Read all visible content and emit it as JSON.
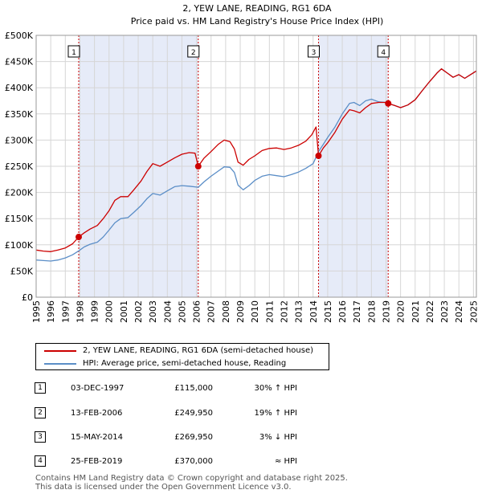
{
  "chart_data": {
    "type": "line",
    "title": "2, YEW LANE, READING, RG1 6DA",
    "subtitle": "Price paid vs. HM Land Registry's House Price Index (HPI)",
    "xlabel": "",
    "ylabel": "",
    "xlim": [
      1995,
      2025.2
    ],
    "ylim": [
      0,
      500000
    ],
    "x_ticks": [
      "1995",
      "1996",
      "1997",
      "1998",
      "1999",
      "2000",
      "2001",
      "2002",
      "2003",
      "2004",
      "2005",
      "2006",
      "2007",
      "2008",
      "2009",
      "2010",
      "2011",
      "2012",
      "2013",
      "2014",
      "2015",
      "2016",
      "2017",
      "2018",
      "2019",
      "2020",
      "2021",
      "2022",
      "2023",
      "2024",
      "2025"
    ],
    "y_ticks": [
      {
        "value": 0,
        "label": "£0"
      },
      {
        "value": 50000,
        "label": "£50K"
      },
      {
        "value": 100000,
        "label": "£100K"
      },
      {
        "value": 150000,
        "label": "£150K"
      },
      {
        "value": 200000,
        "label": "£200K"
      },
      {
        "value": 250000,
        "label": "£250K"
      },
      {
        "value": 300000,
        "label": "£300K"
      },
      {
        "value": 350000,
        "label": "£350K"
      },
      {
        "value": 400000,
        "label": "£400K"
      },
      {
        "value": 450000,
        "label": "£450K"
      },
      {
        "value": 500000,
        "label": "£500K"
      }
    ],
    "grid": true,
    "shaded_ranges": [
      [
        1997.92,
        2006.12
      ],
      [
        2014.37,
        2019.15
      ]
    ],
    "series": [
      {
        "name": "2, YEW LANE, READING, RG1 6DA (semi-detached house)",
        "color": "#cc0000",
        "points": [
          [
            1995.0,
            90000
          ],
          [
            1995.5,
            88000
          ],
          [
            1996.0,
            87000
          ],
          [
            1996.5,
            90000
          ],
          [
            1997.0,
            94000
          ],
          [
            1997.5,
            102000
          ],
          [
            1997.92,
            115000
          ],
          [
            1998.3,
            123000
          ],
          [
            1998.7,
            130000
          ],
          [
            1999.2,
            137000
          ],
          [
            1999.6,
            150000
          ],
          [
            2000.0,
            165000
          ],
          [
            2000.4,
            185000
          ],
          [
            2000.8,
            192000
          ],
          [
            2001.3,
            192000
          ],
          [
            2001.7,
            205000
          ],
          [
            2002.2,
            222000
          ],
          [
            2002.6,
            240000
          ],
          [
            2003.0,
            255000
          ],
          [
            2003.5,
            250000
          ],
          [
            2004.0,
            258000
          ],
          [
            2004.5,
            266000
          ],
          [
            2005.0,
            273000
          ],
          [
            2005.5,
            276000
          ],
          [
            2005.9,
            275000
          ],
          [
            2006.12,
            249950
          ],
          [
            2006.5,
            265000
          ],
          [
            2007.0,
            278000
          ],
          [
            2007.5,
            292000
          ],
          [
            2007.9,
            300000
          ],
          [
            2008.3,
            297000
          ],
          [
            2008.6,
            283000
          ],
          [
            2008.85,
            258000
          ],
          [
            2009.2,
            252000
          ],
          [
            2009.6,
            263000
          ],
          [
            2010.0,
            270000
          ],
          [
            2010.5,
            280000
          ],
          [
            2011.0,
            284000
          ],
          [
            2011.5,
            285000
          ],
          [
            2012.0,
            282000
          ],
          [
            2012.5,
            285000
          ],
          [
            2013.0,
            290000
          ],
          [
            2013.5,
            298000
          ],
          [
            2013.9,
            310000
          ],
          [
            2014.2,
            325000
          ],
          [
            2014.37,
            269950
          ],
          [
            2014.7,
            285000
          ],
          [
            2015.0,
            295000
          ],
          [
            2015.5,
            315000
          ],
          [
            2016.0,
            340000
          ],
          [
            2016.5,
            358000
          ],
          [
            2016.8,
            356000
          ],
          [
            2017.2,
            352000
          ],
          [
            2017.6,
            362000
          ],
          [
            2018.0,
            370000
          ],
          [
            2018.5,
            372000
          ],
          [
            2019.0,
            372000
          ],
          [
            2019.15,
            370000
          ],
          [
            2019.6,
            366000
          ],
          [
            2020.0,
            362000
          ],
          [
            2020.5,
            367000
          ],
          [
            2021.0,
            377000
          ],
          [
            2021.5,
            395000
          ],
          [
            2022.0,
            412000
          ],
          [
            2022.5,
            428000
          ],
          [
            2022.8,
            436000
          ],
          [
            2023.2,
            428000
          ],
          [
            2023.6,
            420000
          ],
          [
            2024.0,
            425000
          ],
          [
            2024.4,
            418000
          ],
          [
            2024.8,
            425000
          ],
          [
            2025.2,
            432000
          ]
        ]
      },
      {
        "name": "HPI: Average price, semi-detached house, Reading",
        "color": "#5b8ec7",
        "points": [
          [
            1995.0,
            71000
          ],
          [
            1995.5,
            70000
          ],
          [
            1996.0,
            69000
          ],
          [
            1996.5,
            71000
          ],
          [
            1997.0,
            75000
          ],
          [
            1997.5,
            81000
          ],
          [
            1997.92,
            88500
          ],
          [
            1998.3,
            96000
          ],
          [
            1998.7,
            101000
          ],
          [
            1999.2,
            105000
          ],
          [
            1999.6,
            115000
          ],
          [
            2000.0,
            128000
          ],
          [
            2000.4,
            142000
          ],
          [
            2000.8,
            150000
          ],
          [
            2001.3,
            152000
          ],
          [
            2001.7,
            162000
          ],
          [
            2002.2,
            175000
          ],
          [
            2002.6,
            188000
          ],
          [
            2003.0,
            198000
          ],
          [
            2003.5,
            195000
          ],
          [
            2004.0,
            203000
          ],
          [
            2004.5,
            211000
          ],
          [
            2005.0,
            213000
          ],
          [
            2005.5,
            212000
          ],
          [
            2006.12,
            210000
          ],
          [
            2006.5,
            220000
          ],
          [
            2007.0,
            231000
          ],
          [
            2007.5,
            241000
          ],
          [
            2007.9,
            249000
          ],
          [
            2008.3,
            248000
          ],
          [
            2008.6,
            238000
          ],
          [
            2008.85,
            214000
          ],
          [
            2009.2,
            205000
          ],
          [
            2009.6,
            213000
          ],
          [
            2010.0,
            223000
          ],
          [
            2010.5,
            231000
          ],
          [
            2011.0,
            234000
          ],
          [
            2011.5,
            232000
          ],
          [
            2012.0,
            230000
          ],
          [
            2012.5,
            234000
          ],
          [
            2013.0,
            239000
          ],
          [
            2013.5,
            246000
          ],
          [
            2014.0,
            255000
          ],
          [
            2014.37,
            278000
          ],
          [
            2014.7,
            292000
          ],
          [
            2015.0,
            305000
          ],
          [
            2015.5,
            325000
          ],
          [
            2016.0,
            350000
          ],
          [
            2016.5,
            370000
          ],
          [
            2016.8,
            372000
          ],
          [
            2017.2,
            366000
          ],
          [
            2017.6,
            375000
          ],
          [
            2018.0,
            378000
          ],
          [
            2018.5,
            373000
          ],
          [
            2019.0,
            372000
          ],
          [
            2019.15,
            370000
          ],
          [
            2019.6,
            366000
          ],
          [
            2020.0,
            362000
          ],
          [
            2020.5,
            367000
          ],
          [
            2021.0,
            377000
          ],
          [
            2021.5,
            395000
          ],
          [
            2022.0,
            412000
          ],
          [
            2022.5,
            428000
          ],
          [
            2022.8,
            436000
          ],
          [
            2023.2,
            428000
          ],
          [
            2023.6,
            420000
          ],
          [
            2024.0,
            425000
          ],
          [
            2024.4,
            418000
          ],
          [
            2024.8,
            425000
          ],
          [
            2025.2,
            432000
          ]
        ]
      }
    ],
    "sales": [
      {
        "num": "1",
        "x": 1997.92,
        "price": 115000
      },
      {
        "num": "2",
        "x": 2006.12,
        "price": 249950
      },
      {
        "num": "3",
        "x": 2014.37,
        "price": 269950
      },
      {
        "num": "4",
        "x": 2019.15,
        "price": 370000
      }
    ]
  },
  "legend": [
    {
      "label": "2, YEW LANE, READING, RG1 6DA (semi-detached house)",
      "color": "#cc0000"
    },
    {
      "label": "HPI: Average price, semi-detached house, Reading",
      "color": "#5b8ec7"
    }
  ],
  "sales_table": [
    {
      "num": "1",
      "date": "03-DEC-1997",
      "price": "£115,000",
      "hpi": "30% ↑ HPI"
    },
    {
      "num": "2",
      "date": "13-FEB-2006",
      "price": "£249,950",
      "hpi": "19% ↑ HPI"
    },
    {
      "num": "3",
      "date": "15-MAY-2014",
      "price": "£269,950",
      "hpi": "3% ↓ HPI"
    },
    {
      "num": "4",
      "date": "25-FEB-2019",
      "price": "£370,000",
      "hpi": "≈ HPI"
    }
  ],
  "footer": {
    "line1": "Contains HM Land Registry data © Crown copyright and database right 2025.",
    "line2": "This data is licensed under the Open Government Licence v3.0."
  }
}
